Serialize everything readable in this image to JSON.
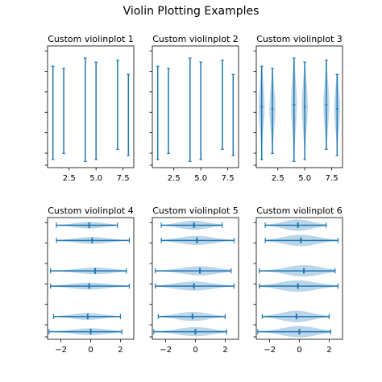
{
  "figure": {
    "title": "Violin Plotting Examples"
  },
  "colors": {
    "violin_fill": "#1f77b4",
    "violin_alpha": 0.3,
    "line": "#1f77b4",
    "axes": "#000000"
  },
  "chart_data": [
    {
      "type": "violin",
      "orientation": "vertical",
      "title": "Custom violinplot 1",
      "positions": [
        1,
        2,
        4,
        5,
        7,
        8
      ],
      "xticks": [
        "2.5",
        "5.0",
        "7.5"
      ],
      "xtick_values": [
        2.5,
        5.0,
        7.5
      ],
      "xlim": [
        0.5,
        8.5
      ],
      "ylim": [
        -3,
        3
      ],
      "yticklabels_visible": false,
      "series": [
        {
          "position": 1,
          "min": -2.6,
          "max": 2.0,
          "mean": 0.0,
          "width": 0.02
        },
        {
          "position": 2,
          "min": -2.3,
          "max": 1.9,
          "mean": -0.1,
          "width": 0.02
        },
        {
          "position": 4,
          "min": -2.7,
          "max": 2.4,
          "mean": 0.1,
          "width": 0.02
        },
        {
          "position": 5,
          "min": -2.6,
          "max": 2.2,
          "mean": 0.0,
          "width": 0.02
        },
        {
          "position": 7,
          "min": -2.1,
          "max": 2.3,
          "mean": 0.1,
          "width": 0.02
        },
        {
          "position": 8,
          "min": -2.4,
          "max": 1.6,
          "mean": -0.1,
          "width": 0.02
        }
      ]
    },
    {
      "type": "violin",
      "orientation": "vertical",
      "title": "Custom violinplot 2",
      "positions": [
        1,
        2,
        4,
        5,
        7,
        8
      ],
      "xticks": [
        "2.5",
        "5.0",
        "7.5"
      ],
      "xtick_values": [
        2.5,
        5.0,
        7.5
      ],
      "xlim": [
        0.5,
        8.5
      ],
      "ylim": [
        -3,
        3
      ],
      "yticklabels_visible": false,
      "series": [
        {
          "position": 1,
          "min": -2.6,
          "max": 2.0,
          "mean": 0.0,
          "width": 0.02
        },
        {
          "position": 2,
          "min": -2.3,
          "max": 1.9,
          "mean": -0.1,
          "width": 0.02
        },
        {
          "position": 4,
          "min": -2.7,
          "max": 2.4,
          "mean": 0.1,
          "width": 0.02
        },
        {
          "position": 5,
          "min": -2.6,
          "max": 2.2,
          "mean": 0.0,
          "width": 0.02
        },
        {
          "position": 7,
          "min": -2.1,
          "max": 2.3,
          "mean": 0.1,
          "width": 0.02
        },
        {
          "position": 8,
          "min": -2.4,
          "max": 1.6,
          "mean": -0.1,
          "width": 0.02
        }
      ]
    },
    {
      "type": "violin",
      "orientation": "vertical",
      "title": "Custom violinplot 3",
      "positions": [
        1,
        2,
        4,
        5,
        7,
        8
      ],
      "xticks": [
        "2.5",
        "5.0",
        "7.5"
      ],
      "xtick_values": [
        2.5,
        5.0,
        7.5
      ],
      "xlim": [
        0.5,
        8.5
      ],
      "ylim": [
        -3,
        3
      ],
      "yticklabels_visible": false,
      "show_means": true,
      "series": [
        {
          "position": 1,
          "min": -2.6,
          "max": 2.0,
          "mean": 0.0,
          "width": 0.55
        },
        {
          "position": 2,
          "min": -2.3,
          "max": 1.9,
          "mean": -0.1,
          "width": 0.55
        },
        {
          "position": 4,
          "min": -2.7,
          "max": 2.4,
          "mean": 0.1,
          "width": 0.55
        },
        {
          "position": 5,
          "min": -2.6,
          "max": 2.2,
          "mean": 0.0,
          "width": 0.55
        },
        {
          "position": 7,
          "min": -2.1,
          "max": 2.3,
          "mean": 0.1,
          "width": 0.55
        },
        {
          "position": 8,
          "min": -2.4,
          "max": 1.6,
          "mean": -0.1,
          "width": 0.55
        }
      ]
    },
    {
      "type": "violin",
      "orientation": "horizontal",
      "title": "Custom violinplot 4",
      "positions": [
        1,
        2,
        4,
        5,
        7,
        8
      ],
      "xticks": [
        "−2",
        "0",
        "2"
      ],
      "xtick_values": [
        -2,
        0,
        2
      ],
      "xlim": [
        -2.9,
        2.9
      ],
      "ylim": [
        0.5,
        8.5
      ],
      "yticklabels_visible": false,
      "series": [
        {
          "position": 1,
          "min": -2.8,
          "max": 2.1,
          "mean": 0.0,
          "width": 0.45
        },
        {
          "position": 2,
          "min": -2.5,
          "max": 2.0,
          "mean": -0.2,
          "width": 0.45
        },
        {
          "position": 4,
          "min": -2.7,
          "max": 2.6,
          "mean": -0.1,
          "width": 0.45
        },
        {
          "position": 5,
          "min": -2.7,
          "max": 2.4,
          "mean": 0.3,
          "width": 0.45
        },
        {
          "position": 7,
          "min": -2.3,
          "max": 2.6,
          "mean": 0.1,
          "width": 0.45
        },
        {
          "position": 8,
          "min": -2.3,
          "max": 1.8,
          "mean": -0.1,
          "width": 0.45
        }
      ]
    },
    {
      "type": "violin",
      "orientation": "horizontal",
      "title": "Custom violinplot 5",
      "positions": [
        1,
        2,
        4,
        5,
        7,
        8
      ],
      "xticks": [
        "−2",
        "0",
        "2"
      ],
      "xtick_values": [
        -2,
        0,
        2
      ],
      "xlim": [
        -2.9,
        2.9
      ],
      "ylim": [
        0.5,
        8.5
      ],
      "yticklabels_visible": false,
      "series": [
        {
          "position": 1,
          "min": -2.8,
          "max": 2.1,
          "mean": 0.0,
          "width": 0.6
        },
        {
          "position": 2,
          "min": -2.5,
          "max": 2.0,
          "mean": -0.2,
          "width": 0.6
        },
        {
          "position": 4,
          "min": -2.7,
          "max": 2.6,
          "mean": -0.1,
          "width": 0.6
        },
        {
          "position": 5,
          "min": -2.7,
          "max": 2.4,
          "mean": 0.3,
          "width": 0.6
        },
        {
          "position": 7,
          "min": -2.3,
          "max": 2.6,
          "mean": 0.1,
          "width": 0.6
        },
        {
          "position": 8,
          "min": -2.3,
          "max": 1.8,
          "mean": -0.1,
          "width": 0.6
        }
      ]
    },
    {
      "type": "violin",
      "orientation": "horizontal",
      "title": "Custom violinplot 6",
      "positions": [
        1,
        2,
        4,
        5,
        7,
        8
      ],
      "xticks": [
        "−2",
        "0",
        "2"
      ],
      "xtick_values": [
        -2,
        0,
        2
      ],
      "xlim": [
        -2.9,
        2.9
      ],
      "ylim": [
        0.5,
        8.5
      ],
      "yticklabels_visible": false,
      "series": [
        {
          "position": 1,
          "min": -2.8,
          "max": 2.1,
          "mean": 0.0,
          "width": 0.75
        },
        {
          "position": 2,
          "min": -2.5,
          "max": 2.0,
          "mean": -0.2,
          "width": 0.75
        },
        {
          "position": 4,
          "min": -2.7,
          "max": 2.6,
          "mean": -0.1,
          "width": 0.75
        },
        {
          "position": 5,
          "min": -2.7,
          "max": 2.4,
          "mean": 0.3,
          "width": 0.75
        },
        {
          "position": 7,
          "min": -2.3,
          "max": 2.6,
          "mean": 0.1,
          "width": 0.75
        },
        {
          "position": 8,
          "min": -2.3,
          "max": 1.8,
          "mean": -0.1,
          "width": 0.75
        }
      ]
    }
  ]
}
